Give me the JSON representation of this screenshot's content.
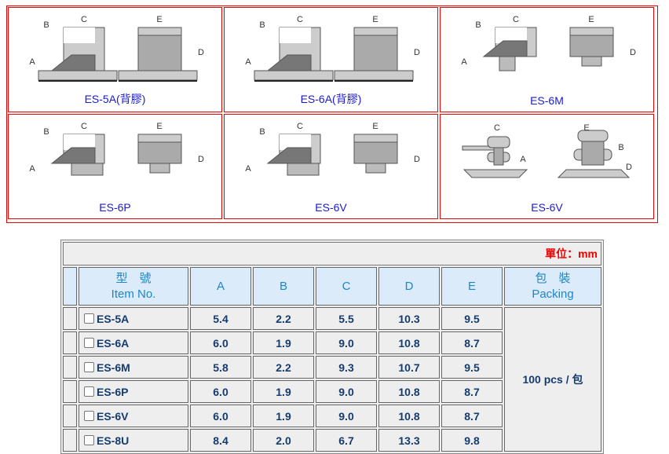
{
  "products": [
    {
      "caption": "ES-5A(背膠)",
      "type": "A"
    },
    {
      "caption": "ES-6A(背膠)",
      "type": "A"
    },
    {
      "caption": "ES-6M",
      "type": "M"
    },
    {
      "caption": "ES-6P",
      "type": "P"
    },
    {
      "caption": "ES-6V",
      "type": "P"
    },
    {
      "caption": "ES-6V",
      "type": "V"
    }
  ],
  "dim_labels": {
    "a": "A",
    "b": "B",
    "c": "C",
    "d": "D",
    "e": "E"
  },
  "table": {
    "unit": "單位：mm",
    "headers": {
      "item_zh": "型　號",
      "item_en": "Item No.",
      "a": "A",
      "b": "B",
      "c": "C",
      "d": "D",
      "e": "E",
      "pack_zh": "包　裝",
      "pack_en": "Packing"
    },
    "packing": "100 pcs / 包",
    "rows": [
      {
        "item": "ES-5A",
        "a": "5.4",
        "b": "2.2",
        "c": "5.5",
        "d": "10.3",
        "e": "9.5"
      },
      {
        "item": "ES-6A",
        "a": "6.0",
        "b": "1.9",
        "c": "9.0",
        "d": "10.8",
        "e": "8.7"
      },
      {
        "item": "ES-6M",
        "a": "5.8",
        "b": "2.2",
        "c": "9.3",
        "d": "10.7",
        "e": "9.5"
      },
      {
        "item": "ES-6P",
        "a": "6.0",
        "b": "1.9",
        "c": "9.0",
        "d": "10.8",
        "e": "8.7"
      },
      {
        "item": "ES-6V",
        "a": "6.0",
        "b": "1.9",
        "c": "9.0",
        "d": "10.8",
        "e": "8.7"
      },
      {
        "item": "ES-8U",
        "a": "8.4",
        "b": "2.0",
        "c": "6.7",
        "d": "13.3",
        "e": "9.8"
      }
    ]
  }
}
